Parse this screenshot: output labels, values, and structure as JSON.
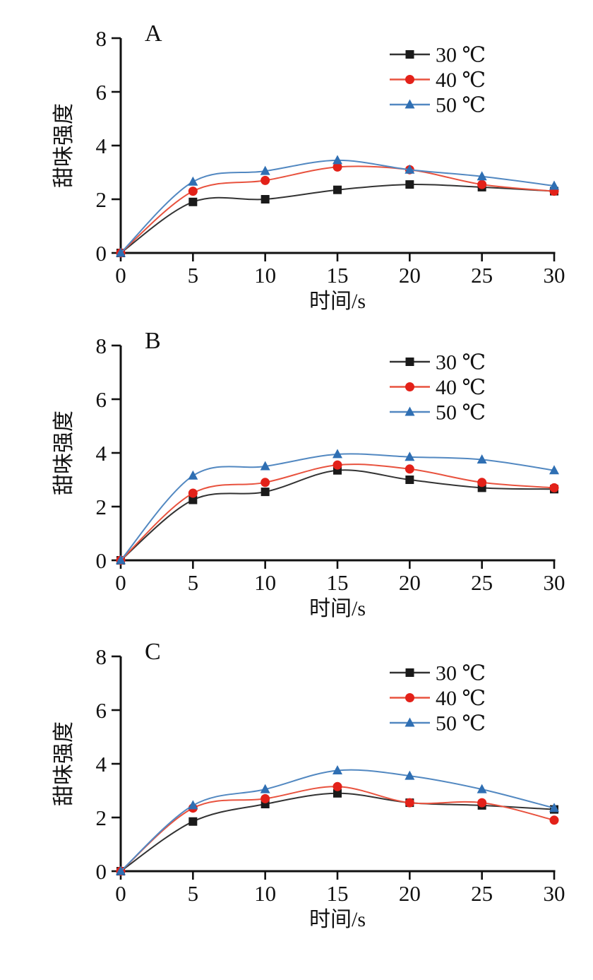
{
  "figure": {
    "xlabel": "时间/s",
    "ylabel": "甜味强度",
    "legend_labels": [
      "30 ℃",
      "40 ℃",
      "50 ℃"
    ],
    "colors": {
      "series_30c_marker": "#1a1a1a",
      "series_30c_line": "#333333",
      "series_40c_marker": "#e32119",
      "series_40c_line": "#e8523e",
      "series_50c_marker": "#2f6fb3",
      "series_50c_line": "#5288c1"
    }
  },
  "chart_data": [
    {
      "type": "line",
      "panel_label": "A",
      "xlabel": "时间/s",
      "ylabel": "甜味强度",
      "x": [
        0,
        5,
        10,
        15,
        20,
        25,
        30
      ],
      "xlim": [
        0,
        30
      ],
      "ylim": [
        0,
        8
      ],
      "xticks": [
        0,
        5,
        10,
        15,
        20,
        25,
        30
      ],
      "yticks": [
        0,
        2,
        4,
        6,
        8
      ],
      "grid": false,
      "legend_position": "top-right",
      "series": [
        {
          "name": "30 ℃",
          "marker": "square",
          "marker_color": "#1a1a1a",
          "line_color": "#333333",
          "values": [
            0,
            1.9,
            2.0,
            2.35,
            2.55,
            2.45,
            2.3
          ]
        },
        {
          "name": "40 ℃",
          "marker": "circle",
          "marker_color": "#e32119",
          "line_color": "#e8523e",
          "values": [
            0,
            2.3,
            2.7,
            3.2,
            3.1,
            2.55,
            2.3
          ]
        },
        {
          "name": "50 ℃",
          "marker": "triangle",
          "marker_color": "#2f6fb3",
          "line_color": "#5288c1",
          "values": [
            0,
            2.65,
            3.05,
            3.45,
            3.1,
            2.85,
            2.5
          ]
        }
      ]
    },
    {
      "type": "line",
      "panel_label": "B",
      "xlabel": "时间/s",
      "ylabel": "甜味强度",
      "x": [
        0,
        5,
        10,
        15,
        20,
        25,
        30
      ],
      "xlim": [
        0,
        30
      ],
      "ylim": [
        0,
        8
      ],
      "xticks": [
        0,
        5,
        10,
        15,
        20,
        25,
        30
      ],
      "yticks": [
        0,
        2,
        4,
        6,
        8
      ],
      "grid": false,
      "legend_position": "top-right",
      "series": [
        {
          "name": "30 ℃",
          "marker": "square",
          "marker_color": "#1a1a1a",
          "line_color": "#333333",
          "values": [
            0,
            2.25,
            2.55,
            3.35,
            3.0,
            2.7,
            2.65
          ]
        },
        {
          "name": "40 ℃",
          "marker": "circle",
          "marker_color": "#e32119",
          "line_color": "#e8523e",
          "values": [
            0,
            2.5,
            2.9,
            3.55,
            3.4,
            2.9,
            2.7
          ]
        },
        {
          "name": "50 ℃",
          "marker": "triangle",
          "marker_color": "#2f6fb3",
          "line_color": "#5288c1",
          "values": [
            0,
            3.15,
            3.5,
            3.95,
            3.85,
            3.75,
            3.35
          ]
        }
      ]
    },
    {
      "type": "line",
      "panel_label": "C",
      "xlabel": "时间/s",
      "ylabel": "甜味强度",
      "x": [
        0,
        5,
        10,
        15,
        20,
        25,
        30
      ],
      "xlim": [
        0,
        30
      ],
      "ylim": [
        0,
        8
      ],
      "xticks": [
        0,
        5,
        10,
        15,
        20,
        25,
        30
      ],
      "yticks": [
        0,
        2,
        4,
        6,
        8
      ],
      "grid": false,
      "legend_position": "top-right",
      "series": [
        {
          "name": "30 ℃",
          "marker": "square",
          "marker_color": "#1a1a1a",
          "line_color": "#333333",
          "values": [
            0,
            1.85,
            2.5,
            2.9,
            2.55,
            2.45,
            2.3
          ]
        },
        {
          "name": "40 ℃",
          "marker": "circle",
          "marker_color": "#e32119",
          "line_color": "#e8523e",
          "values": [
            0,
            2.35,
            2.7,
            3.15,
            2.55,
            2.55,
            1.9
          ]
        },
        {
          "name": "50 ℃",
          "marker": "triangle",
          "marker_color": "#2f6fb3",
          "line_color": "#5288c1",
          "values": [
            0,
            2.45,
            3.05,
            3.75,
            3.55,
            3.05,
            2.35
          ]
        }
      ]
    }
  ]
}
